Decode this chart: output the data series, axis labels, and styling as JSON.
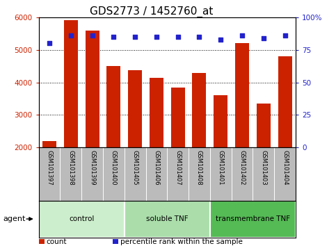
{
  "title": "GDS2773 / 1452760_at",
  "samples": [
    "GSM101397",
    "GSM101398",
    "GSM101399",
    "GSM101400",
    "GSM101405",
    "GSM101406",
    "GSM101407",
    "GSM101408",
    "GSM101401",
    "GSM101402",
    "GSM101403",
    "GSM101404"
  ],
  "counts": [
    2200,
    5900,
    5600,
    4500,
    4380,
    4150,
    3850,
    4300,
    3600,
    5200,
    3350,
    4800
  ],
  "percentile_ranks": [
    80,
    86,
    86,
    85,
    85,
    85,
    85,
    85,
    83,
    86,
    84,
    86
  ],
  "bar_color": "#cc2200",
  "dot_color": "#2222cc",
  "ylim_left": [
    2000,
    6000
  ],
  "ylim_right": [
    0,
    100
  ],
  "yticks_left": [
    2000,
    3000,
    4000,
    5000,
    6000
  ],
  "yticks_right": [
    0,
    25,
    50,
    75,
    100
  ],
  "ytick_labels_right": [
    "0",
    "25",
    "50",
    "75",
    "100%"
  ],
  "groups": [
    {
      "label": "control",
      "start": 0,
      "end": 3,
      "color": "#cceecc"
    },
    {
      "label": "soluble TNF",
      "start": 4,
      "end": 7,
      "color": "#aaddaa"
    },
    {
      "label": "transmembrane TNF",
      "start": 8,
      "end": 11,
      "color": "#55bb55"
    }
  ],
  "legend_items": [
    {
      "color": "#cc2200",
      "label": "count"
    },
    {
      "color": "#2222cc",
      "label": "percentile rank within the sample"
    }
  ],
  "background_color": "#ffffff",
  "plot_background": "#ffffff",
  "tick_area_color": "#bbbbbb",
  "title_fontsize": 11,
  "tick_fontsize": 7.5,
  "label_fontsize": 8
}
